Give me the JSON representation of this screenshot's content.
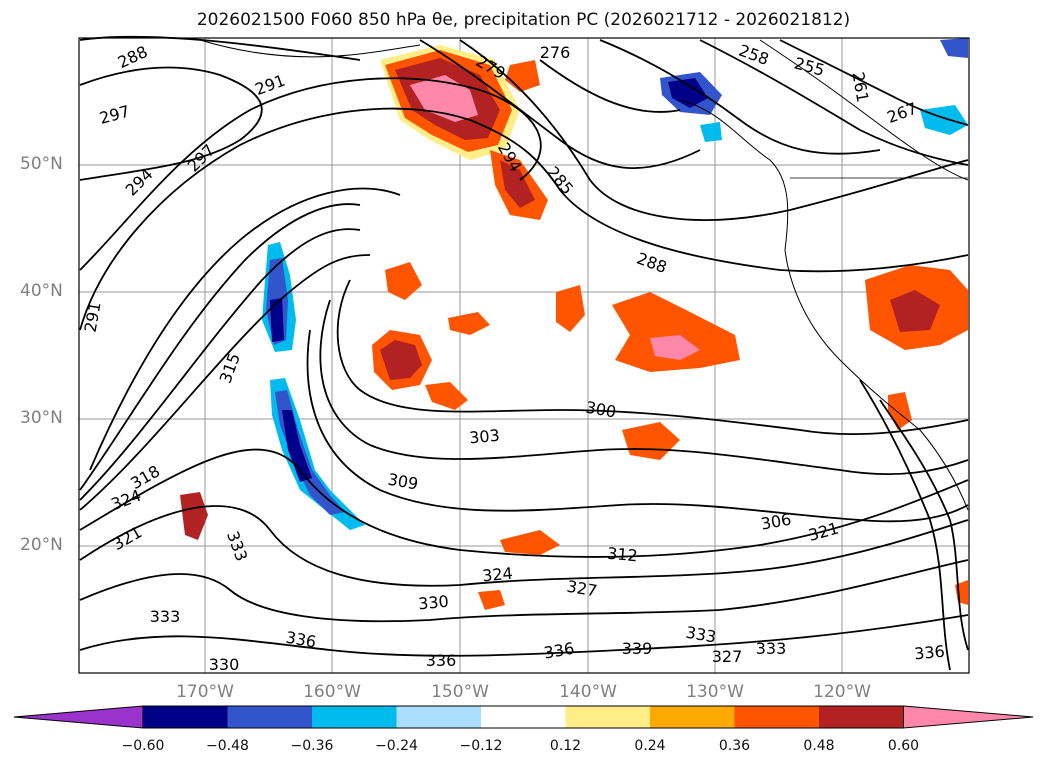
{
  "title": "2026021500 F060 850 hPa θe, precipitation PC (2026021712 - 2026021812)",
  "lat_labels": [
    "50°N",
    "40°N",
    "30°N",
    "20°N"
  ],
  "lon_labels": [
    "170°W",
    "160°W",
    "150°W",
    "140°W",
    "130°W",
    "120°W"
  ],
  "contour_labels": [
    "288",
    "297",
    "291",
    "294",
    "297",
    "291",
    "276",
    "279",
    "258",
    "255",
    "261",
    "267",
    "294",
    "285",
    "288",
    "300",
    "303",
    "309",
    "315",
    "318",
    "324",
    "321",
    "333",
    "306",
    "321",
    "312",
    "324",
    "327",
    "330",
    "333",
    "336",
    "330",
    "336",
    "339",
    "327",
    "333",
    "336",
    "333",
    "336"
  ],
  "colorbar": {
    "colors": [
      "#9933cc",
      "#000088",
      "#3355cc",
      "#00bbee",
      "#aaddff",
      "#ffffff",
      "#ffee88",
      "#ffaa00",
      "#ff5500",
      "#b22222",
      "#ff88aa"
    ],
    "tick_labels": [
      "−0.60",
      "−0.48",
      "−0.36",
      "−0.24",
      "−0.12",
      "0.12",
      "0.24",
      "0.36",
      "0.48",
      "0.60"
    ]
  },
  "precip_colors": {
    "neg_light": "#aaddff",
    "neg_mid": "#00bbee",
    "neg_dark": "#3355cc",
    "neg_darkest": "#000088",
    "pos_light": "#ffee88",
    "pos_mid": "#ffaa00",
    "pos_orange": "#ff5500",
    "pos_red": "#b22222",
    "pos_pink": "#ff88aa"
  }
}
